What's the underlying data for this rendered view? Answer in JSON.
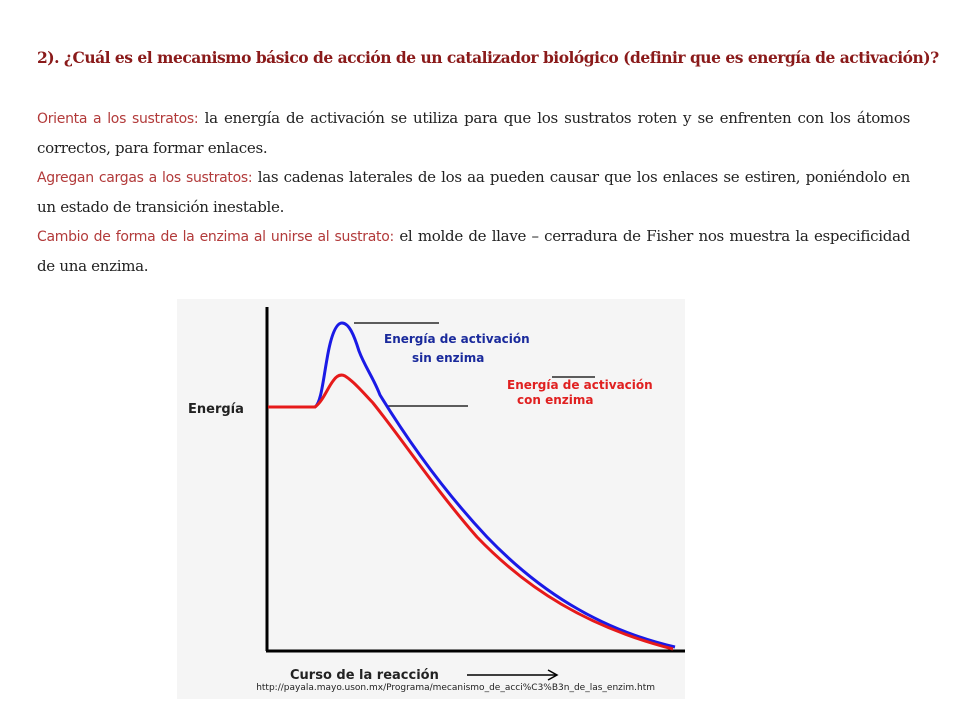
{
  "question": "2). ¿Cuál es el mecanismo básico de acción de un catalizador biológico (definir que es energía de activación)?",
  "paragraphs": [
    {
      "term": "Orienta a los sustratos:",
      "text": " la energía de activación se utiliza para que los sustratos roten y se enfrenten con los átomos correctos, para formar enlaces."
    },
    {
      "term": "Agregan cargas a los sustratos:",
      "text": " las cadenas laterales de los aa pueden causar que los enlaces se estiren, poniéndolo en un estado de transición inestable."
    },
    {
      "term": "Cambio de forma de la enzima al unirse al sustrato:",
      "text": " el molde de llave – cerradura de Fisher nos muestra la especificidad de una enzima."
    }
  ],
  "figure": {
    "y_label": "Energía",
    "x_label": "Curso de la reacción",
    "label_without_enzyme_1": "Energía de activación",
    "label_without_enzyme_2": "sin enzima",
    "label_with_enzyme_1": "Energía de activación",
    "label_with_enzyme_2": "con enzima",
    "source": "http://payala.mayo.uson.mx/Programa/mecanismo_de_acci%C3%B3n_de_las_enzim.htm",
    "colors": {
      "without_enzyme": "#1a1ae6",
      "with_enzyme": "#e61a1a",
      "label_without": "#1a2a9c",
      "label_with": "#e02020"
    }
  }
}
